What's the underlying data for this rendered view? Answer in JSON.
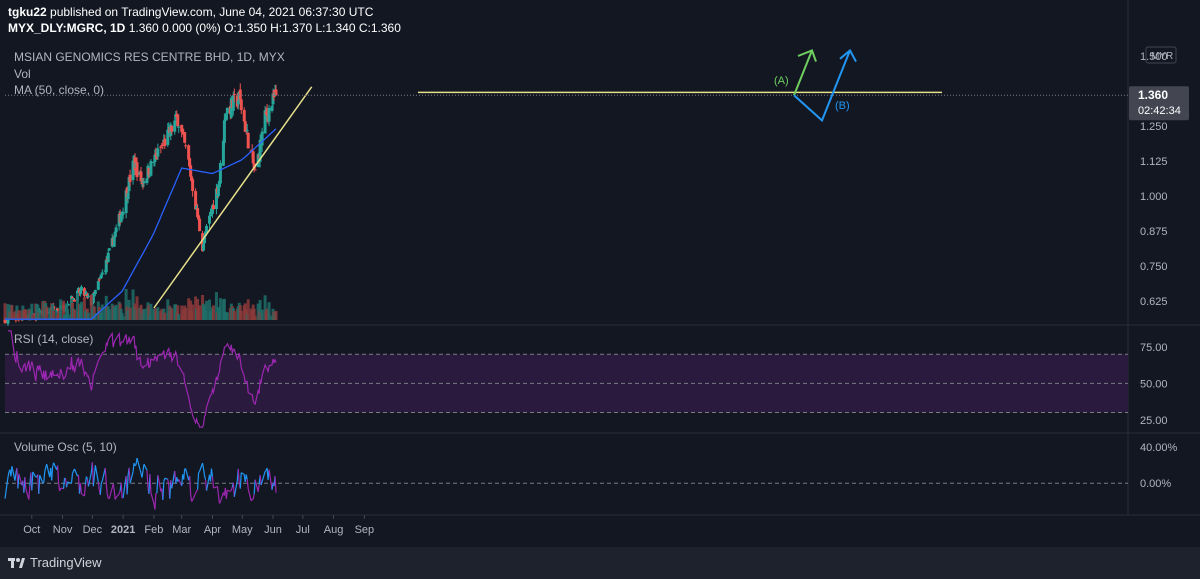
{
  "header": {
    "user": "tgku22",
    "published": "published on TradingView.com, June 04, 2021 06:37:30 UTC",
    "symbol": "MYX_DLY:MGRC, 1D",
    "ohlc": "1.360 0.000 (0%) O:1.350 H:1.370 L:1.340 C:1.360"
  },
  "legend": {
    "title": "MSIAN GENOMICS RES CENTRE BHD, 1D, MYX",
    "vol": "Vol",
    "ma": "MA (50, close, 0)",
    "rsi": "RSI (14, close)",
    "vosc": "Volume Osc (5, 10)"
  },
  "branding": {
    "logo_text": "TradingView"
  },
  "colors": {
    "background": "#131722",
    "up": "#26a69a",
    "down": "#ef5350",
    "ma": "#2962ff",
    "resistance": "#e6e08a",
    "rsi": "#9c27b0",
    "rsi_band": "#2a1a3e",
    "vosc_up": "#2196f3",
    "vosc_down": "#9c27b0",
    "arrow_a": "#6fcf5f",
    "arrow_b": "#2196f3",
    "price_tag": "#434651"
  },
  "chart_data": [
    {
      "type": "candlestick",
      "title": "MSIAN GENOMICS RES CENTRE BHD, 1D, MYX",
      "currency": "MYR",
      "y_ticks": [
        "1.500",
        "1.375",
        "1.250",
        "1.125",
        "1.000",
        "0.875",
        "0.750",
        "0.625"
      ],
      "y_tick_values": [
        1.5,
        1.375,
        1.25,
        1.125,
        1.0,
        0.875,
        0.75,
        0.625
      ],
      "ylim": [
        0.55,
        1.55
      ],
      "x_ticks": [
        "Oct",
        "Nov",
        "Dec",
        "2021",
        "Feb",
        "Mar",
        "Apr",
        "May",
        "Jun",
        "Jul",
        "Aug",
        "Sep"
      ],
      "last_price": "1.360",
      "countdown": "02:42:34",
      "series": [
        {
          "name": "price",
          "approx_close_path": [
            {
              "date": "2020-09-04",
              "close": 0.56
            },
            {
              "date": "2020-09-30",
              "close": 0.57
            },
            {
              "date": "2020-10-31",
              "close": 0.6
            },
            {
              "date": "2020-11-20",
              "close": 0.66
            },
            {
              "date": "2020-11-30",
              "close": 0.62
            },
            {
              "date": "2020-12-15",
              "close": 0.76
            },
            {
              "date": "2020-12-31",
              "close": 0.95
            },
            {
              "date": "2021-01-12",
              "close": 1.12
            },
            {
              "date": "2021-01-20",
              "close": 1.05
            },
            {
              "date": "2021-02-05",
              "close": 1.15
            },
            {
              "date": "2021-02-25",
              "close": 1.28
            },
            {
              "date": "2021-03-08",
              "close": 1.12
            },
            {
              "date": "2021-03-22",
              "close": 0.82
            },
            {
              "date": "2021-04-08",
              "close": 1.06
            },
            {
              "date": "2021-04-14",
              "close": 1.3
            },
            {
              "date": "2021-04-28",
              "close": 1.35
            },
            {
              "date": "2021-05-14",
              "close": 1.08
            },
            {
              "date": "2021-05-24",
              "close": 1.28
            },
            {
              "date": "2021-06-04",
              "close": 1.36
            }
          ]
        },
        {
          "name": "MA (50, close, 0)",
          "approx_path": [
            {
              "date": "2020-09-04",
              "value": 0.56
            },
            {
              "date": "2020-11-30",
              "value": 0.56
            },
            {
              "date": "2020-12-31",
              "value": 0.66
            },
            {
              "date": "2021-01-31",
              "value": 0.86
            },
            {
              "date": "2021-03-01",
              "value": 1.1
            },
            {
              "date": "2021-04-01",
              "value": 1.08
            },
            {
              "date": "2021-05-01",
              "value": 1.13
            },
            {
              "date": "2021-06-04",
              "value": 1.24
            }
          ]
        }
      ],
      "annotations": [
        {
          "type": "horizontal_resistance",
          "price": 1.37
        },
        {
          "type": "ascending_trendline",
          "from": {
            "date": "2021-02-01",
            "price": 0.6
          },
          "to": {
            "date": "2021-07-10",
            "price": 1.39
          }
        },
        {
          "type": "arrow_label",
          "text": "(A)"
        },
        {
          "type": "arrow_label",
          "text": "(B)"
        }
      ]
    },
    {
      "type": "line",
      "name": "RSI (14, close)",
      "y_ticks": [
        "75.00",
        "50.00",
        "25.00"
      ],
      "y_tick_values": [
        75,
        50,
        25
      ],
      "ylim": [
        18,
        88
      ]
    },
    {
      "type": "line",
      "name": "Volume Osc (5, 10)",
      "y_ticks": [
        "40.00%",
        "0.00%"
      ],
      "y_tick_values": [
        40,
        0
      ],
      "ylim": [
        -35,
        52
      ]
    }
  ]
}
